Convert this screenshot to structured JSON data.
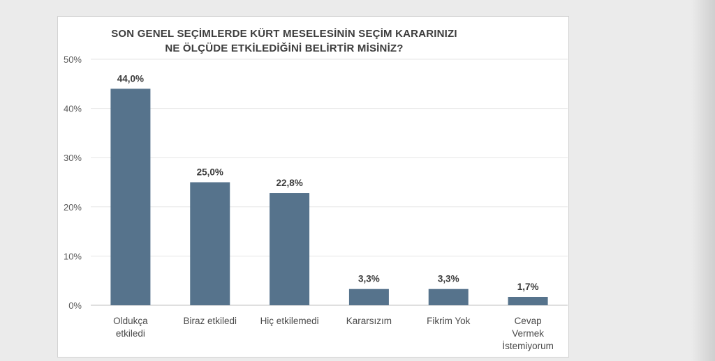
{
  "chart_data": {
    "type": "bar",
    "title_lines": [
      "SON GENEL SEÇİMLERDE KÜRT MESELESİNİN SEÇİM KARARINIZI",
      "NE ÖLÇÜDE ETKİLEDİĞİNİ BELİRTİR MİSİNİZ?"
    ],
    "categories": [
      [
        "Oldukça",
        "etkiledi"
      ],
      [
        "Biraz etkiledi"
      ],
      [
        "Hiç etkilemedi"
      ],
      [
        "Kararsızım"
      ],
      [
        "Fikrim Yok"
      ],
      [
        "Cevap",
        "Vermek",
        "İstemiyorum"
      ]
    ],
    "values": [
      44.0,
      25.0,
      22.8,
      3.3,
      3.3,
      1.7
    ],
    "value_labels": [
      "44,0%",
      "25,0%",
      "22,8%",
      "3,3%",
      "3,3%",
      "1,7%"
    ],
    "yticks": [
      "0%",
      "10%",
      "20%",
      "30%",
      "40%",
      "50%"
    ],
    "ylim": [
      0,
      50
    ],
    "grid": true,
    "bar_color": "#56738c"
  }
}
